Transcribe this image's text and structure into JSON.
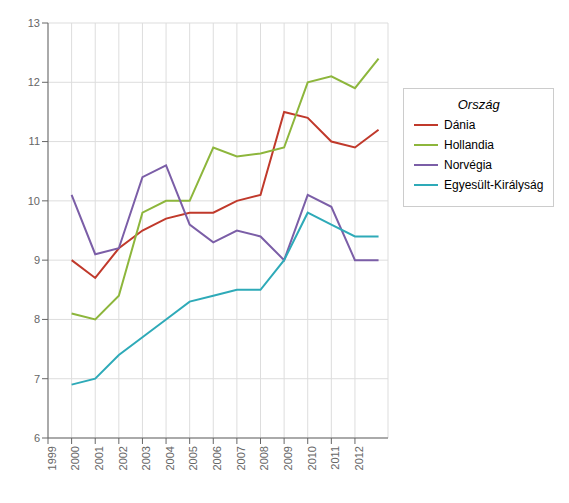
{
  "chart_data": {
    "type": "line",
    "legend_title": "Ország",
    "x": [
      2000,
      2001,
      2002,
      2003,
      2004,
      2005,
      2006,
      2007,
      2008,
      2009,
      2010,
      2011,
      2012,
      2013
    ],
    "series": [
      {
        "name": "Dánia",
        "color": "#c0392b",
        "values": [
          9.0,
          8.7,
          9.2,
          9.5,
          9.7,
          9.8,
          9.8,
          10.0,
          10.1,
          11.5,
          11.4,
          11.0,
          10.9,
          11.2
        ]
      },
      {
        "name": "Hollandia",
        "color": "#8db63c",
        "values": [
          8.1,
          8.0,
          8.4,
          9.8,
          10.0,
          10.0,
          10.9,
          10.75,
          10.8,
          10.9,
          12.0,
          12.1,
          11.9,
          12.4
        ]
      },
      {
        "name": "Norvégia",
        "color": "#7b5ea7",
        "values": [
          10.1,
          9.1,
          9.2,
          10.4,
          10.6,
          9.6,
          9.3,
          9.5,
          9.4,
          9.0,
          10.1,
          9.9,
          9.0,
          9.0
        ]
      },
      {
        "name": "Egyesült-Királyság",
        "color": "#2eaab8",
        "values": [
          6.9,
          7.0,
          7.4,
          7.7,
          8.0,
          8.3,
          8.4,
          8.5,
          8.5,
          9.0,
          9.8,
          9.6,
          9.4,
          9.4
        ]
      }
    ],
    "xlim": [
      1999,
      2013.4
    ],
    "ylim": [
      6,
      13
    ],
    "xticks": [
      1999,
      2000,
      2001,
      2002,
      2003,
      2004,
      2005,
      2006,
      2007,
      2008,
      2009,
      2010,
      2011,
      2012
    ],
    "yticks": [
      6,
      7,
      8,
      9,
      10,
      11,
      12,
      13
    ],
    "grid": true,
    "legend": "right"
  }
}
